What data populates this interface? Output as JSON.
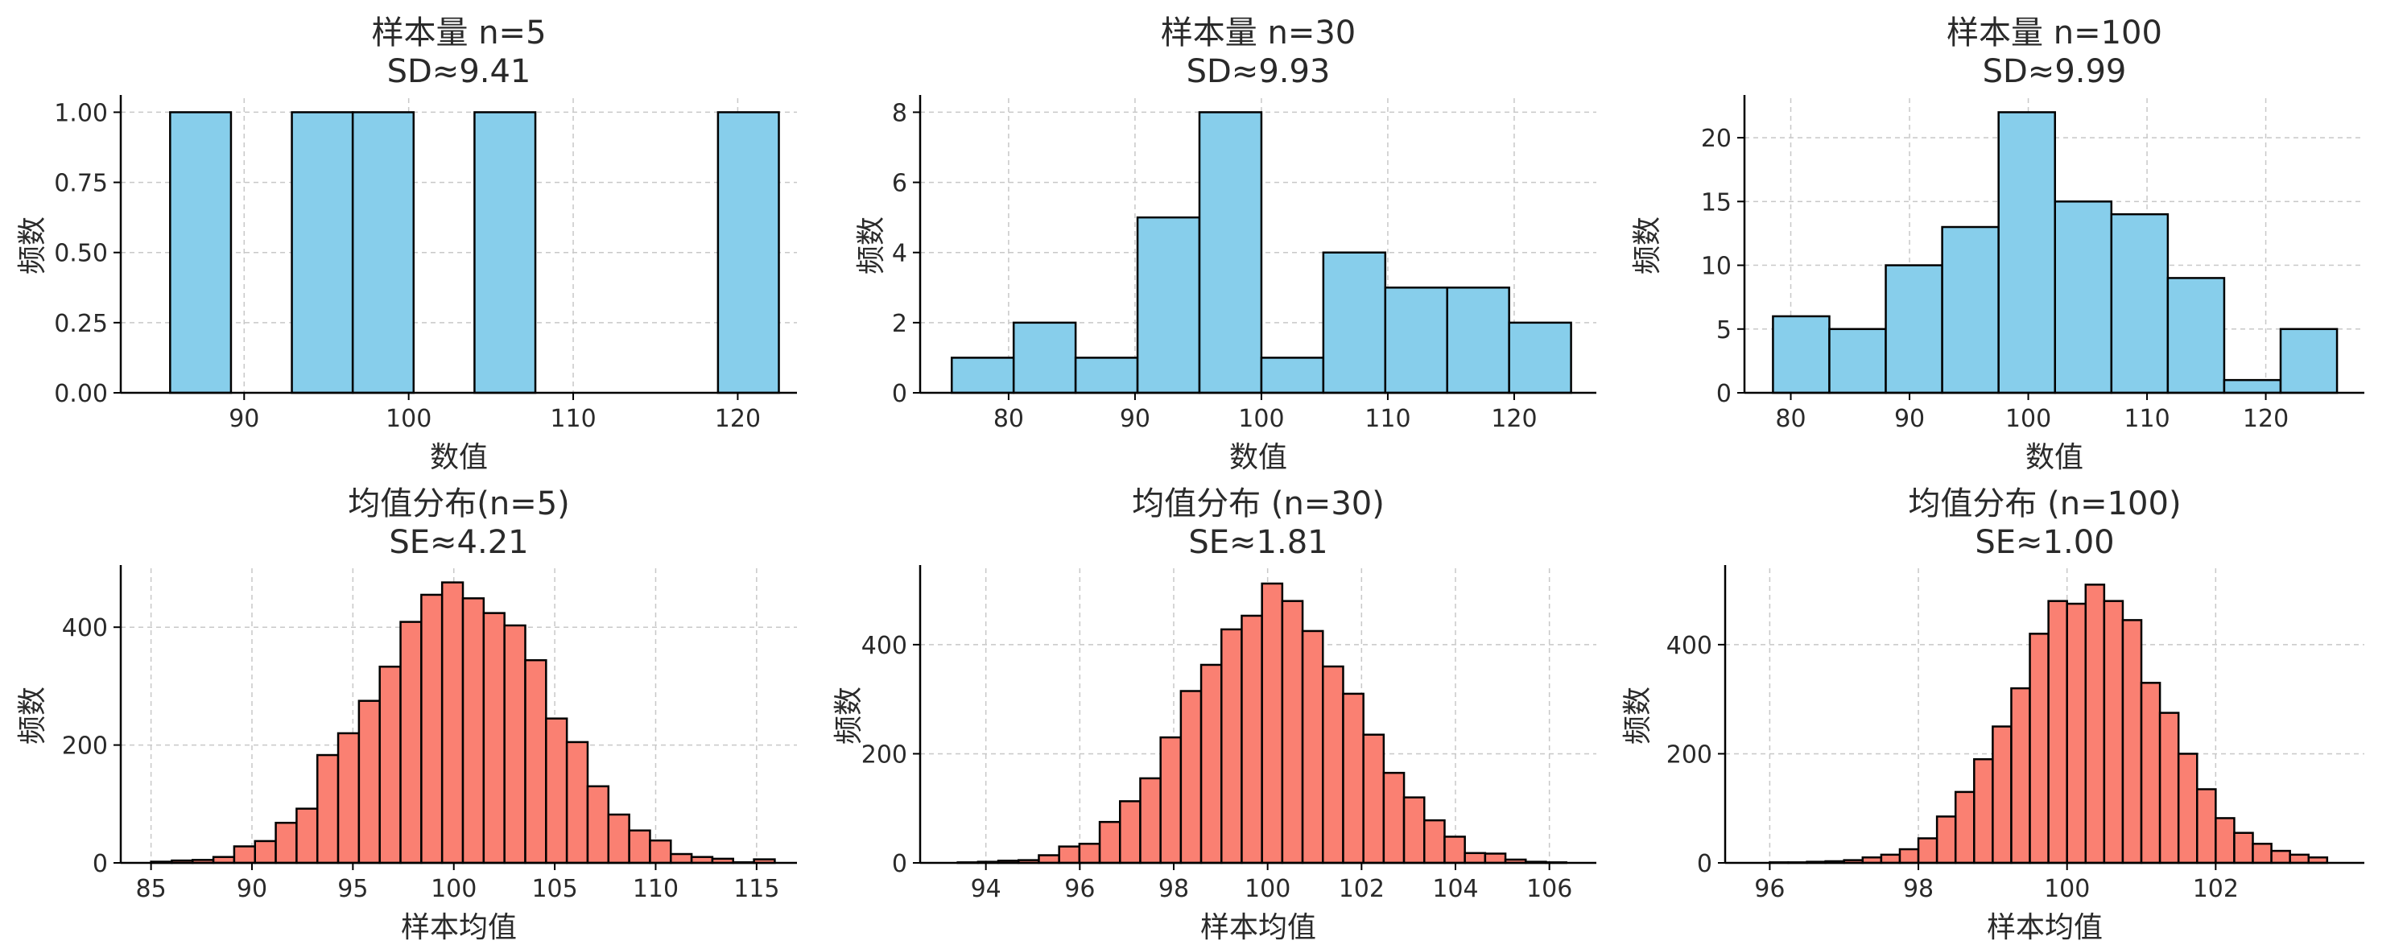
{
  "colors": {
    "top": "#87ceeb",
    "bottom": "#fa8072",
    "edge": "#000000"
  },
  "chart_data": [
    {
      "type": "bar",
      "title_lines": [
        "样本量 n=5",
        "SD≈9.41"
      ],
      "xlabel": "数值",
      "ylabel": "频数",
      "bins": {
        "start": 85.5,
        "width": 3.7
      },
      "values": [
        1,
        0,
        1,
        1,
        0,
        1,
        0,
        0,
        0,
        1
      ],
      "xlim": [
        82.5,
        123.6
      ],
      "ylim": [
        0,
        1.05
      ],
      "xticks": [
        90,
        100,
        110,
        120
      ],
      "xtick_labels": [
        "90",
        "100",
        "110",
        "120"
      ],
      "yticks": [
        0,
        0.25,
        0.5,
        0.75,
        1.0
      ],
      "ytick_labels": [
        "0.00",
        "0.25",
        "0.50",
        "0.75",
        "1.00"
      ],
      "grid": true
    },
    {
      "type": "bar",
      "title_lines": [
        "样本量 n=30",
        "SD≈9.93"
      ],
      "xlabel": "数值",
      "ylabel": "频数",
      "bins": {
        "start": 75.5,
        "width": 4.9
      },
      "values": [
        1,
        2,
        1,
        5,
        8,
        1,
        4,
        3,
        3,
        2
      ],
      "xlim": [
        73.0,
        126.5
      ],
      "ylim": [
        0,
        8.4
      ],
      "xticks": [
        80,
        90,
        100,
        110,
        120
      ],
      "xtick_labels": [
        "80",
        "90",
        "100",
        "110",
        "120"
      ],
      "yticks": [
        0,
        2,
        4,
        6,
        8
      ],
      "ytick_labels": [
        "0",
        "2",
        "4",
        "6",
        "8"
      ],
      "grid": true
    },
    {
      "type": "bar",
      "title_lines": [
        "样本量 n=100",
        "SD≈9.99"
      ],
      "xlabel": "数值",
      "ylabel": "频数",
      "bins": {
        "start": 78.5,
        "width": 4.75
      },
      "values": [
        6,
        5,
        10,
        13,
        22,
        15,
        14,
        9,
        1,
        5
      ],
      "xlim": [
        76.1,
        128.3
      ],
      "ylim": [
        0,
        23.1
      ],
      "xticks": [
        80,
        90,
        100,
        110,
        120
      ],
      "xtick_labels": [
        "80",
        "90",
        "100",
        "110",
        "120"
      ],
      "yticks": [
        0,
        5,
        10,
        15,
        20
      ],
      "ytick_labels": [
        "0",
        "5",
        "10",
        "15",
        "20"
      ],
      "grid": true
    },
    {
      "type": "bar",
      "title_lines": [
        "均值分布(n=5)",
        "SE≈4.21"
      ],
      "xlabel": "样本均值",
      "ylabel": "频数",
      "bins": {
        "start": 85.0,
        "width": 1.03
      },
      "values": [
        2,
        4,
        5,
        10,
        28,
        37,
        68,
        92,
        183,
        220,
        275,
        333,
        409,
        455,
        476,
        449,
        424,
        403,
        344,
        245,
        205,
        130,
        82,
        55,
        38,
        15,
        10,
        7,
        1,
        6
      ],
      "xlim": [
        83.5,
        117.0
      ],
      "ylim": [
        0,
        500
      ],
      "xticks": [
        85,
        90,
        95,
        100,
        105,
        110,
        115
      ],
      "xtick_labels": [
        "85",
        "90",
        "95",
        "100",
        "105",
        "110",
        "115"
      ],
      "yticks": [
        0,
        200,
        400
      ],
      "ytick_labels": [
        "0",
        "200",
        "400"
      ],
      "grid": true
    },
    {
      "type": "bar",
      "title_lines": [
        "均值分布 (n=30)",
        "SE≈1.81"
      ],
      "xlabel": "样本均值",
      "ylabel": "频数",
      "bins": {
        "start": 93.4,
        "width": 0.432
      },
      "values": [
        1,
        2,
        4,
        5,
        14,
        30,
        35,
        75,
        113,
        155,
        230,
        315,
        363,
        428,
        453,
        512,
        480,
        425,
        360,
        310,
        235,
        165,
        120,
        78,
        48,
        18,
        17,
        6,
        2,
        1
      ],
      "xlim": [
        92.6,
        107.0
      ],
      "ylim": [
        0,
        540
      ],
      "xticks": [
        94,
        96,
        98,
        100,
        102,
        104,
        106
      ],
      "xtick_labels": [
        "94",
        "96",
        "98",
        "100",
        "102",
        "104",
        "106"
      ],
      "yticks": [
        0,
        200,
        400
      ],
      "ytick_labels": [
        "0",
        "200",
        "400"
      ],
      "grid": true
    },
    {
      "type": "bar",
      "title_lines": [
        "均值分布 (n=100)",
        "SE≈1.00"
      ],
      "xlabel": "样本均值",
      "ylabel": "频数",
      "bins": {
        "start": 96.0,
        "width": 0.25
      },
      "values": [
        1,
        1,
        2,
        3,
        5,
        10,
        15,
        25,
        45,
        85,
        130,
        190,
        250,
        320,
        420,
        480,
        475,
        510,
        480,
        445,
        330,
        275,
        200,
        135,
        82,
        55,
        35,
        22,
        15,
        10
      ],
      "xlim": [
        95.4,
        104.0
      ],
      "ylim": [
        0,
        540
      ],
      "xticks": [
        96,
        98,
        100,
        102
      ],
      "xtick_labels": [
        "96",
        "98",
        "100",
        "102"
      ],
      "yticks": [
        0,
        200,
        400
      ],
      "ytick_labels": [
        "0",
        "200",
        "400"
      ],
      "grid": true
    }
  ]
}
